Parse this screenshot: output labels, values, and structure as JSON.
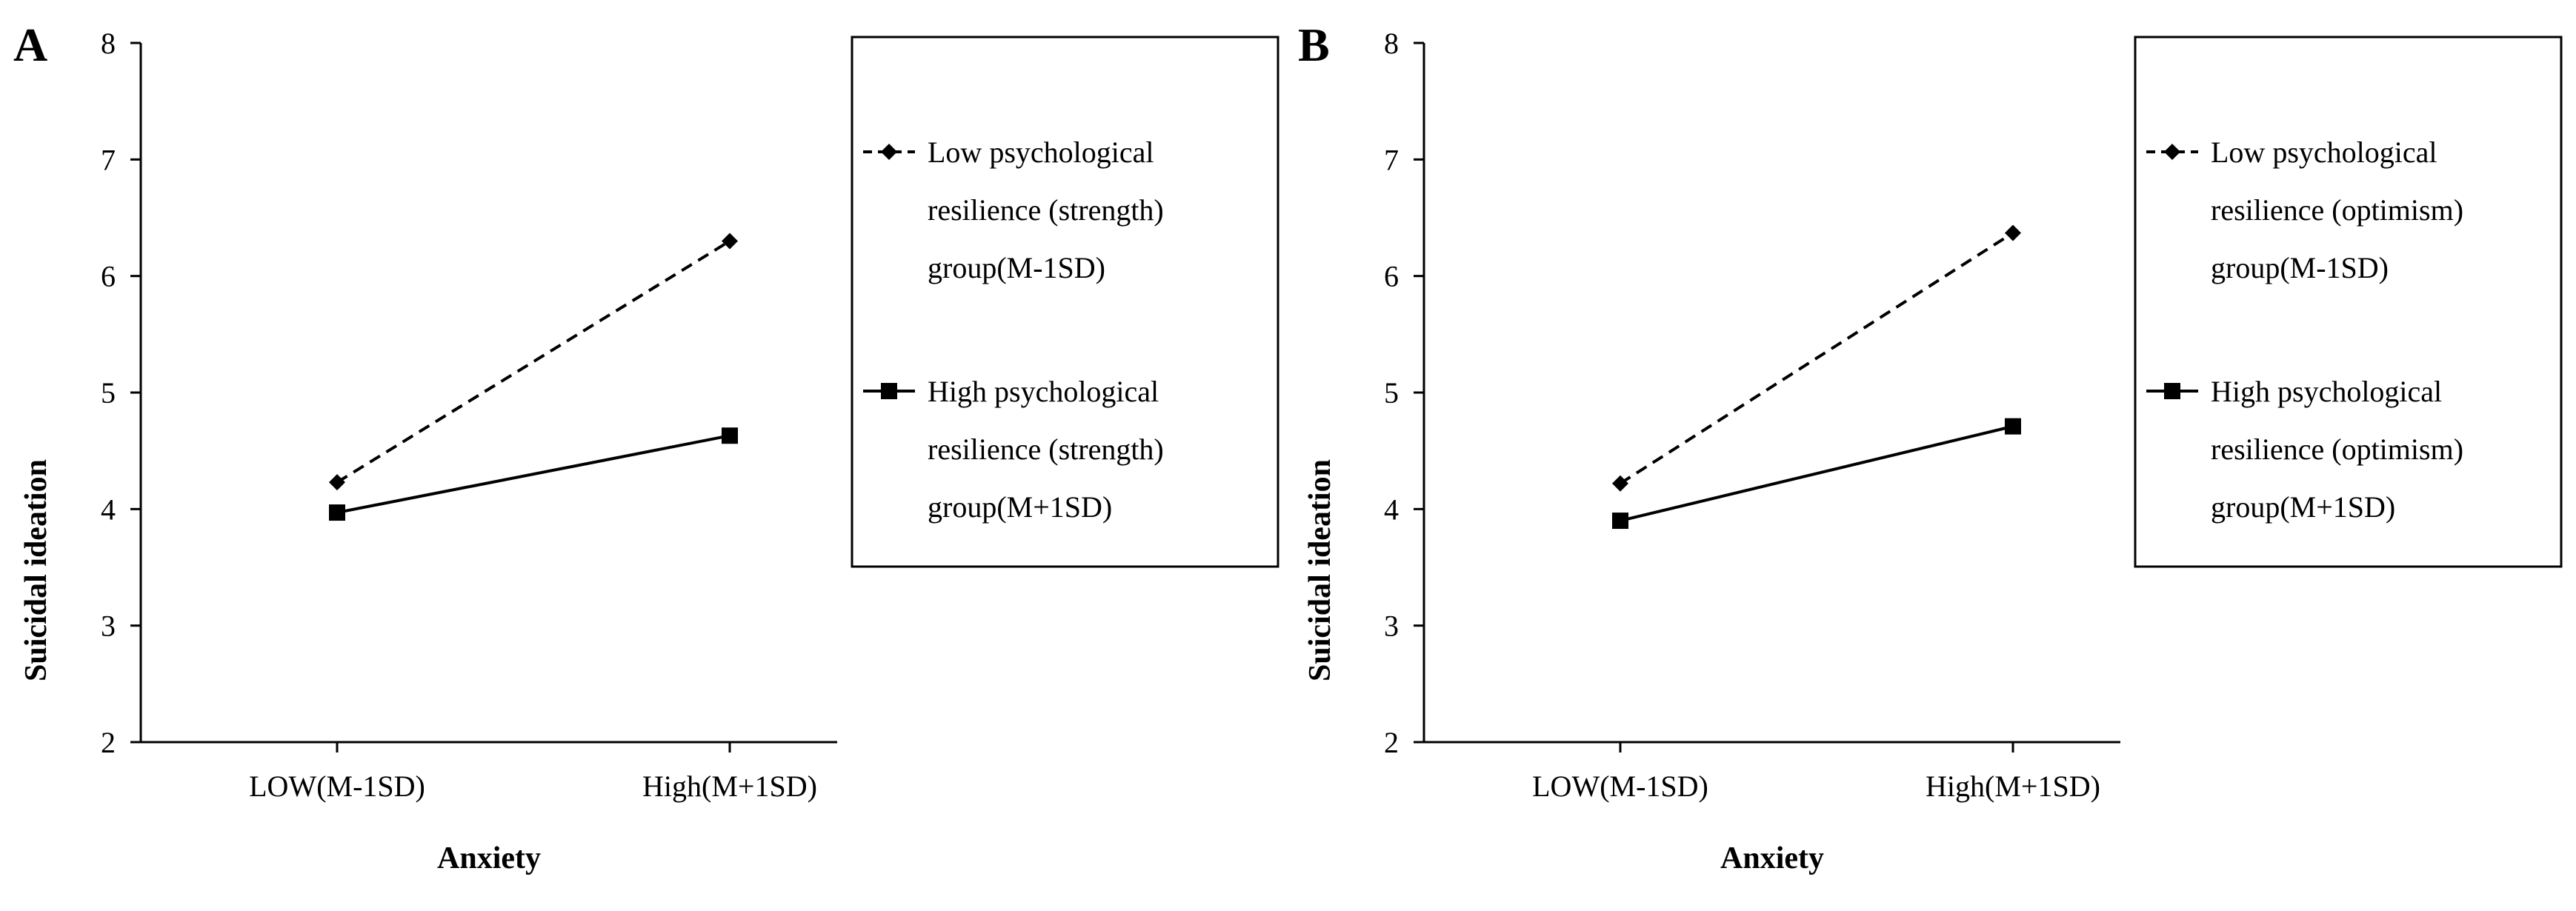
{
  "chart_data": [
    {
      "panel": "A",
      "type": "line",
      "xlabel": "Anxiety",
      "ylabel": "Suicidal ideation",
      "ylim": [
        2,
        8
      ],
      "yticks": [
        "2",
        "3",
        "4",
        "5",
        "6",
        "7",
        "8"
      ],
      "categories": [
        "LOW(M-1SD)",
        "High(M+1SD)"
      ],
      "legend_position": "right",
      "series": [
        {
          "name": "Low psychological resilience (strength) group(M-1SD)",
          "legend_lines": [
            "Low psychological",
            "resilience (strength)",
            "group(M-1SD)"
          ],
          "style": "dashed",
          "marker": "diamond",
          "values": [
            4.23,
            6.3
          ]
        },
        {
          "name": "High psychological resilience (strength) group(M+1SD)",
          "legend_lines": [
            "High psychological",
            "resilience (strength)",
            "group(M+1SD)"
          ],
          "style": "solid",
          "marker": "square",
          "values": [
            3.97,
            4.63
          ]
        }
      ]
    },
    {
      "panel": "B",
      "type": "line",
      "xlabel": "Anxiety",
      "ylabel": "Suicidal ideation",
      "ylim": [
        2,
        8
      ],
      "yticks": [
        "2",
        "3",
        "4",
        "5",
        "6",
        "7",
        "8"
      ],
      "categories": [
        "LOW(M-1SD)",
        "High(M+1SD)"
      ],
      "legend_position": "right",
      "series": [
        {
          "name": "Low psychological resilience (optimism) group(M-1SD)",
          "legend_lines": [
            "Low psychological",
            "resilience (optimism)",
            "group(M-1SD)"
          ],
          "style": "dashed",
          "marker": "diamond",
          "values": [
            4.22,
            6.37
          ]
        },
        {
          "name": "High psychological resilience (optimism) group(M+1SD)",
          "legend_lines": [
            "High psychological",
            "resilience (optimism)",
            "group(M+1SD)"
          ],
          "style": "solid",
          "marker": "square",
          "values": [
            3.9,
            4.71
          ]
        }
      ]
    }
  ]
}
